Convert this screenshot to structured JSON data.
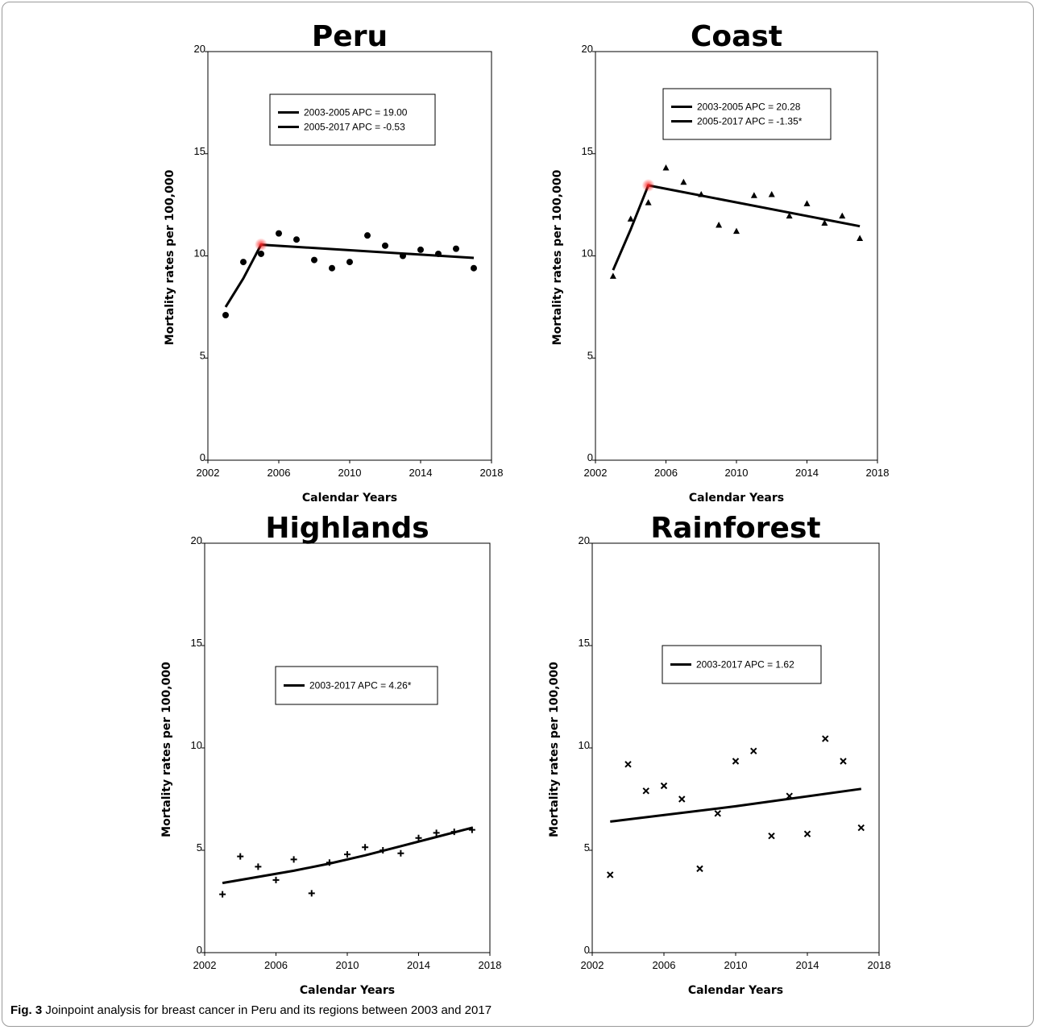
{
  "caption": {
    "label": "Fig. 3",
    "text": "Joinpoint analysis for breast cancer in Peru and its regions between 2003 and 2017"
  },
  "chart_data": [
    {
      "type": "scatter",
      "title": "Peru",
      "xlabel": "Calendar Years",
      "ylabel": "Mortality rates per 100,000",
      "xlim": [
        2002,
        2018
      ],
      "ylim": [
        0,
        20
      ],
      "xticks": [
        2002,
        2006,
        2010,
        2014,
        2018
      ],
      "yticks": [
        0,
        5,
        10,
        15,
        20
      ],
      "marker": "circle",
      "points": [
        [
          2003,
          7.1
        ],
        [
          2004,
          9.7
        ],
        [
          2005,
          10.1
        ],
        [
          2006,
          11.1
        ],
        [
          2007,
          10.8
        ],
        [
          2008,
          9.8
        ],
        [
          2009,
          9.4
        ],
        [
          2010,
          9.7
        ],
        [
          2011,
          11.0
        ],
        [
          2012,
          10.5
        ],
        [
          2013,
          10.0
        ],
        [
          2014,
          10.3
        ],
        [
          2015,
          10.1
        ],
        [
          2016,
          10.35
        ],
        [
          2017,
          9.4
        ]
      ],
      "trend": [
        [
          2003,
          7.5
        ],
        [
          2004,
          8.9
        ],
        [
          2005,
          10.55
        ],
        [
          2017,
          9.9
        ]
      ],
      "joinpoints": [
        [
          2005,
          10.55
        ]
      ],
      "legend": [
        "2003-2005 APC  = 19.00",
        "2005-2017 APC  = -0.53"
      ]
    },
    {
      "type": "scatter",
      "title": "Coast",
      "xlabel": "Calendar Years",
      "ylabel": "Mortality rates per 100,000",
      "xlim": [
        2002,
        2018
      ],
      "ylim": [
        0,
        20
      ],
      "xticks": [
        2002,
        2006,
        2010,
        2014,
        2018
      ],
      "yticks": [
        0,
        5,
        10,
        15,
        20
      ],
      "marker": "triangle",
      "points": [
        [
          2003,
          9.0
        ],
        [
          2004,
          11.8
        ],
        [
          2005,
          12.6
        ],
        [
          2006,
          14.3
        ],
        [
          2007,
          13.6
        ],
        [
          2008,
          13.0
        ],
        [
          2009,
          11.5
        ],
        [
          2010,
          11.2
        ],
        [
          2011,
          12.95
        ],
        [
          2012,
          13.0
        ],
        [
          2013,
          11.95
        ],
        [
          2014,
          12.55
        ],
        [
          2015,
          11.6
        ],
        [
          2016,
          11.95
        ],
        [
          2017,
          10.85
        ]
      ],
      "trend": [
        [
          2003,
          9.3
        ],
        [
          2004,
          11.3
        ],
        [
          2005,
          13.45
        ],
        [
          2017,
          11.45
        ]
      ],
      "joinpoints": [
        [
          2005,
          13.45
        ]
      ],
      "legend": [
        "2003-2005 APC  = 20.28",
        "2005-2017 APC  = -1.35*"
      ]
    },
    {
      "type": "scatter",
      "title": "Highlands",
      "xlabel": "Calendar Years",
      "ylabel": "Mortality rates per 100,000",
      "xlim": [
        2002,
        2018
      ],
      "ylim": [
        0,
        20
      ],
      "xticks": [
        2002,
        2006,
        2010,
        2014,
        2018
      ],
      "yticks": [
        0,
        5,
        10,
        15,
        20
      ],
      "marker": "plus",
      "points": [
        [
          2003,
          2.85
        ],
        [
          2004,
          4.7
        ],
        [
          2005,
          4.2
        ],
        [
          2006,
          3.55
        ],
        [
          2007,
          4.55
        ],
        [
          2008,
          2.9
        ],
        [
          2009,
          4.4
        ],
        [
          2010,
          4.8
        ],
        [
          2011,
          5.15
        ],
        [
          2012,
          5.0
        ],
        [
          2013,
          4.85
        ],
        [
          2014,
          5.6
        ],
        [
          2015,
          5.85
        ],
        [
          2016,
          5.9
        ],
        [
          2017,
          6.0
        ]
      ],
      "trend": [
        [
          2003,
          3.4
        ],
        [
          2005,
          3.7
        ],
        [
          2007,
          4.0
        ],
        [
          2009,
          4.35
        ],
        [
          2011,
          4.75
        ],
        [
          2013,
          5.2
        ],
        [
          2015,
          5.65
        ],
        [
          2017,
          6.1
        ]
      ],
      "joinpoints": [],
      "legend": [
        "2003-2017 APC  = 4.26*"
      ]
    },
    {
      "type": "scatter",
      "title": "Rainforest",
      "xlabel": "Calendar Years",
      "ylabel": "Mortality rates per 100,000",
      "xlim": [
        2002,
        2018
      ],
      "ylim": [
        0,
        20
      ],
      "xticks": [
        2002,
        2006,
        2010,
        2014,
        2018
      ],
      "yticks": [
        0,
        5,
        10,
        15,
        20
      ],
      "marker": "x",
      "points": [
        [
          2003,
          3.8
        ],
        [
          2004,
          9.2
        ],
        [
          2005,
          7.9
        ],
        [
          2006,
          8.15
        ],
        [
          2007,
          7.5
        ],
        [
          2008,
          4.1
        ],
        [
          2009,
          6.8
        ],
        [
          2010,
          9.35
        ],
        [
          2011,
          9.85
        ],
        [
          2012,
          5.7
        ],
        [
          2013,
          7.65
        ],
        [
          2014,
          5.8
        ],
        [
          2015,
          10.45
        ],
        [
          2016,
          9.35
        ],
        [
          2017,
          6.1
        ]
      ],
      "trend": [
        [
          2003,
          6.4
        ],
        [
          2010,
          7.15
        ],
        [
          2017,
          8.0
        ]
      ],
      "joinpoints": [],
      "legend": [
        "2003-2017 APC  = 1.62"
      ]
    }
  ]
}
